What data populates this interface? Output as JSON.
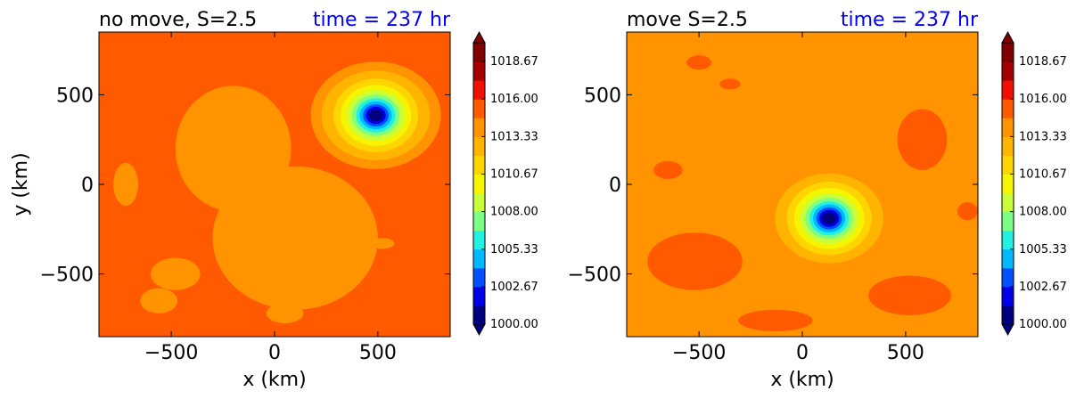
{
  "figure": {
    "colorscale": {
      "stops": [
        "#00007f",
        "#0000e6",
        "#0050ff",
        "#00b8ff",
        "#22f0e0",
        "#7cff84",
        "#c8ff3a",
        "#f5f500",
        "#ffd500",
        "#ffb400",
        "#ff9400",
        "#ff5a00",
        "#f01000",
        "#a40000",
        "#800000"
      ],
      "ticks": [
        "1000.00",
        "1002.67",
        "1005.33",
        "1008.00",
        "1010.67",
        "1013.33",
        "1016.00",
        "1018.67"
      ],
      "tick_values": [
        1000.0,
        1002.67,
        1005.33,
        1008.0,
        1010.67,
        1013.33,
        1016.0,
        1018.67
      ],
      "min": 1000.0,
      "max": 1020.0
    }
  },
  "chart_data": [
    {
      "type": "heatmap",
      "title": "no move, S=2.5",
      "subtitle": "time = 237 hr",
      "subtitle_color": "#0000ff",
      "xlabel": "x (km)",
      "ylabel": "y (km)",
      "xlim": [
        -850,
        850
      ],
      "ylim": [
        -850,
        850
      ],
      "xticks": [
        -500,
        0,
        500
      ],
      "xtick_labels": [
        "−500",
        "0",
        "500"
      ],
      "yticks": [
        -500,
        0,
        500
      ],
      "ytick_labels": [
        "−500",
        "0",
        "500"
      ],
      "background_pressure": 1014.8,
      "low_center": [
        490,
        385
      ],
      "low_min_pressure": 1000.0,
      "features": [
        {
          "x": 100,
          "y": -300,
          "pressure": 1014.3,
          "rx": 400,
          "ry": 400
        },
        {
          "x": -200,
          "y": 200,
          "pressure": 1014.3,
          "rx": 280,
          "ry": 350
        },
        {
          "x": -480,
          "y": -500,
          "pressure": 1014.2,
          "rx": 120,
          "ry": 90
        },
        {
          "x": -560,
          "y": -650,
          "pressure": 1013.7,
          "rx": 90,
          "ry": 70
        },
        {
          "x": -720,
          "y": 0,
          "pressure": 1013.7,
          "rx": 60,
          "ry": 120
        },
        {
          "x": 50,
          "y": -720,
          "pressure": 1013.7,
          "rx": 90,
          "ry": 55
        },
        {
          "x": 520,
          "y": -330,
          "pressure": 1014.2,
          "rx": 60,
          "ry": 30
        }
      ]
    },
    {
      "type": "heatmap",
      "title": "move S=2.5",
      "subtitle": "time = 237 hr",
      "subtitle_color": "#0000ff",
      "xlabel": "x (km)",
      "ylabel": "",
      "xlim": [
        -850,
        850
      ],
      "ylim": [
        -850,
        850
      ],
      "xticks": [
        -500,
        0,
        500
      ],
      "xtick_labels": [
        "−500",
        "0",
        "500"
      ],
      "yticks": [
        -500,
        0,
        500
      ],
      "ytick_labels": [
        "−500",
        "0",
        "500"
      ],
      "background_pressure": 1014.5,
      "low_center": [
        130,
        -190
      ],
      "low_min_pressure": 1000.0,
      "features": [
        {
          "x": -520,
          "y": -430,
          "pressure": 1015.0,
          "rx": 230,
          "ry": 160
        },
        {
          "x": 580,
          "y": 250,
          "pressure": 1015.0,
          "rx": 120,
          "ry": 170
        },
        {
          "x": 520,
          "y": -620,
          "pressure": 1015.1,
          "rx": 200,
          "ry": 110
        },
        {
          "x": -130,
          "y": -760,
          "pressure": 1015.0,
          "rx": 180,
          "ry": 60
        },
        {
          "x": -650,
          "y": 80,
          "pressure": 1015.0,
          "rx": 70,
          "ry": 50
        },
        {
          "x": -500,
          "y": 680,
          "pressure": 1015.0,
          "rx": 60,
          "ry": 40
        },
        {
          "x": -350,
          "y": 560,
          "pressure": 1015.0,
          "rx": 50,
          "ry": 30
        },
        {
          "x": 800,
          "y": -150,
          "pressure": 1015.0,
          "rx": 50,
          "ry": 50
        }
      ]
    }
  ]
}
